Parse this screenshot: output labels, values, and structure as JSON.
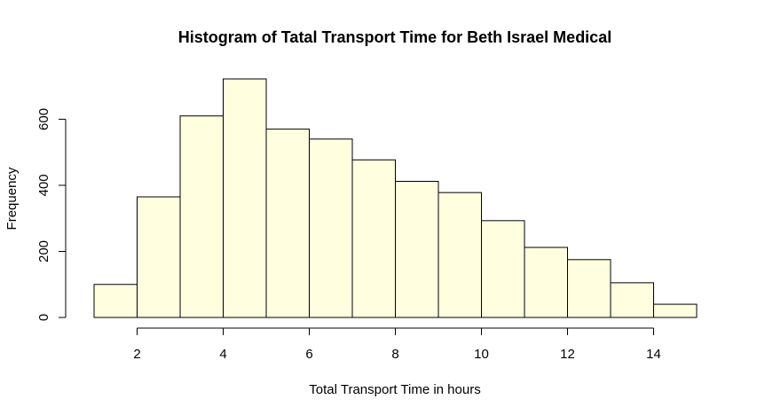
{
  "chart_data": {
    "type": "bar",
    "title": "Histogram of Tatal Transport Time for Beth Israel Medical",
    "xlabel": "Total Transport Time in hours",
    "ylabel": "Frequency",
    "bins": [
      {
        "from": 1,
        "to": 2,
        "count": 100
      },
      {
        "from": 2,
        "to": 3,
        "count": 365
      },
      {
        "from": 3,
        "to": 4,
        "count": 610
      },
      {
        "from": 4,
        "to": 5,
        "count": 722
      },
      {
        "from": 5,
        "to": 6,
        "count": 570
      },
      {
        "from": 6,
        "to": 7,
        "count": 540
      },
      {
        "from": 7,
        "to": 8,
        "count": 477
      },
      {
        "from": 8,
        "to": 9,
        "count": 412
      },
      {
        "from": 9,
        "to": 10,
        "count": 378
      },
      {
        "from": 10,
        "to": 11,
        "count": 293
      },
      {
        "from": 11,
        "to": 12,
        "count": 212
      },
      {
        "from": 12,
        "to": 13,
        "count": 175
      },
      {
        "from": 13,
        "to": 14,
        "count": 105
      },
      {
        "from": 14,
        "to": 15,
        "count": 40
      }
    ],
    "xlim": [
      1,
      15
    ],
    "ylim": [
      0,
      722
    ],
    "x_ticks": [
      2,
      4,
      6,
      8,
      10,
      12,
      14
    ],
    "y_ticks": [
      0,
      200,
      400,
      600
    ],
    "bar_fill": "#ffffe0",
    "bar_stroke": "#000000",
    "grid": false,
    "legend": "none"
  }
}
